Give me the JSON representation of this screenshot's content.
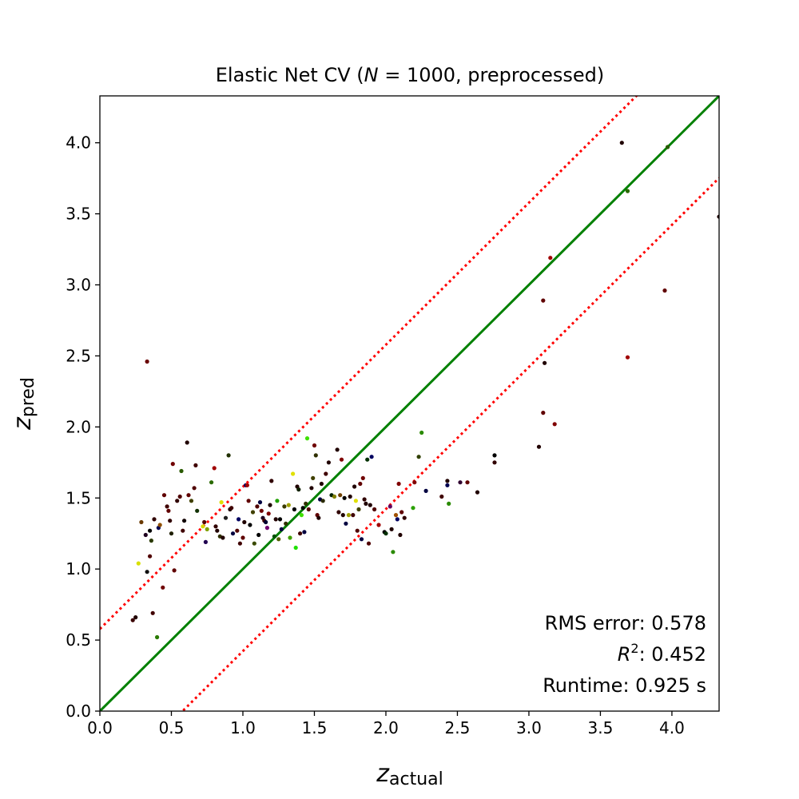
{
  "chart_data": {
    "type": "scatter",
    "title_pre": "Elastic Net CV (",
    "title_var": "N",
    "title_post": " = 1000, preprocessed)",
    "xlabel_main": "z",
    "xlabel_sub": "actual",
    "ylabel_main": "z",
    "ylabel_sub": "pred",
    "xlim": [
      0,
      4.33
    ],
    "ylim": [
      0,
      4.33
    ],
    "xticks": [
      "0.0",
      "0.5",
      "1.0",
      "1.5",
      "2.0",
      "2.5",
      "3.0",
      "3.5",
      "4.0"
    ],
    "yticks": [
      "0.0",
      "0.5",
      "1.0",
      "1.5",
      "2.0",
      "2.5",
      "3.0",
      "3.5",
      "4.0"
    ],
    "grid": false,
    "reference_lines": [
      {
        "type": "identity",
        "offset": 0,
        "color": "#008000",
        "style": "solid"
      },
      {
        "type": "identity",
        "offset": 0.578,
        "color": "#ff0000",
        "style": "dotted"
      },
      {
        "type": "identity",
        "offset": -0.578,
        "color": "#ff0000",
        "style": "dotted"
      }
    ],
    "annotations": {
      "rms_label": "RMS error: 0.578",
      "r2_var": "R",
      "r2_sup": "2",
      "r2_value": ": 0.452",
      "runtime_label": "Runtime: 0.925 s"
    },
    "points": [
      {
        "x": 0.23,
        "y": 0.64,
        "c": "#3a0000"
      },
      {
        "x": 0.25,
        "y": 0.66,
        "c": "#200000"
      },
      {
        "x": 0.27,
        "y": 1.04,
        "c": "#d8e000"
      },
      {
        "x": 0.29,
        "y": 1.33,
        "c": "#6a3a00"
      },
      {
        "x": 0.32,
        "y": 1.24,
        "c": "#200020"
      },
      {
        "x": 0.33,
        "y": 2.46,
        "c": "#6a0000"
      },
      {
        "x": 0.33,
        "y": 0.98,
        "c": "#101010"
      },
      {
        "x": 0.35,
        "y": 1.27,
        "c": "#000000"
      },
      {
        "x": 0.35,
        "y": 1.09,
        "c": "#500000"
      },
      {
        "x": 0.36,
        "y": 1.2,
        "c": "#2a3a00"
      },
      {
        "x": 0.37,
        "y": 0.69,
        "c": "#400000"
      },
      {
        "x": 0.38,
        "y": 1.35,
        "c": "#300000"
      },
      {
        "x": 0.4,
        "y": 0.52,
        "c": "#2a7a00"
      },
      {
        "x": 0.41,
        "y": 1.29,
        "c": "#000050"
      },
      {
        "x": 0.42,
        "y": 1.31,
        "c": "#905000"
      },
      {
        "x": 0.44,
        "y": 0.87,
        "c": "#700000"
      },
      {
        "x": 0.45,
        "y": 1.52,
        "c": "#600000"
      },
      {
        "x": 0.47,
        "y": 1.44,
        "c": "#400000"
      },
      {
        "x": 0.48,
        "y": 1.41,
        "c": "#600000"
      },
      {
        "x": 0.49,
        "y": 1.34,
        "c": "#300000"
      },
      {
        "x": 0.5,
        "y": 1.25,
        "c": "#202000"
      },
      {
        "x": 0.51,
        "y": 1.74,
        "c": "#700000"
      },
      {
        "x": 0.52,
        "y": 0.99,
        "c": "#600000"
      },
      {
        "x": 0.54,
        "y": 1.48,
        "c": "#300000"
      },
      {
        "x": 0.56,
        "y": 1.51,
        "c": "#500000"
      },
      {
        "x": 0.57,
        "y": 1.69,
        "c": "#2a5a00"
      },
      {
        "x": 0.58,
        "y": 1.27,
        "c": "#400000"
      },
      {
        "x": 0.59,
        "y": 1.34,
        "c": "#100000"
      },
      {
        "x": 0.61,
        "y": 1.89,
        "c": "#200000"
      },
      {
        "x": 0.62,
        "y": 1.52,
        "c": "#600000"
      },
      {
        "x": 0.64,
        "y": 1.48,
        "c": "#404000"
      },
      {
        "x": 0.66,
        "y": 1.57,
        "c": "#500000"
      },
      {
        "x": 0.67,
        "y": 1.73,
        "c": "#400000"
      },
      {
        "x": 0.68,
        "y": 1.41,
        "c": "#103000"
      },
      {
        "x": 0.72,
        "y": 1.3,
        "c": "#d8d800"
      },
      {
        "x": 0.73,
        "y": 1.33,
        "c": "#500000"
      },
      {
        "x": 0.74,
        "y": 1.19,
        "c": "#200050"
      },
      {
        "x": 0.75,
        "y": 1.28,
        "c": "#80a000"
      },
      {
        "x": 0.78,
        "y": 1.61,
        "c": "#2a6a00"
      },
      {
        "x": 0.8,
        "y": 1.71,
        "c": "#a00000"
      },
      {
        "x": 0.81,
        "y": 1.3,
        "c": "#300000"
      },
      {
        "x": 0.82,
        "y": 1.27,
        "c": "#200000"
      },
      {
        "x": 0.84,
        "y": 1.23,
        "c": "#303000"
      },
      {
        "x": 0.85,
        "y": 1.47,
        "c": "#e0e000"
      },
      {
        "x": 0.86,
        "y": 1.22,
        "c": "#200000"
      },
      {
        "x": 0.88,
        "y": 1.36,
        "c": "#202020"
      },
      {
        "x": 0.9,
        "y": 1.8,
        "c": "#203000"
      },
      {
        "x": 0.91,
        "y": 1.42,
        "c": "#200000"
      },
      {
        "x": 0.92,
        "y": 1.43,
        "c": "#400000"
      },
      {
        "x": 0.93,
        "y": 1.25,
        "c": "#000040"
      },
      {
        "x": 0.96,
        "y": 1.27,
        "c": "#500000"
      },
      {
        "x": 0.97,
        "y": 1.35,
        "c": "#000060"
      },
      {
        "x": 0.98,
        "y": 1.18,
        "c": "#400000"
      },
      {
        "x": 1.0,
        "y": 1.22,
        "c": "#600000"
      },
      {
        "x": 1.01,
        "y": 1.33,
        "c": "#200000"
      },
      {
        "x": 1.02,
        "y": 1.59,
        "c": "#000060"
      },
      {
        "x": 1.03,
        "y": 1.59,
        "c": "#a00000"
      },
      {
        "x": 1.04,
        "y": 1.48,
        "c": "#600000"
      },
      {
        "x": 1.05,
        "y": 1.31,
        "c": "#000000"
      },
      {
        "x": 1.07,
        "y": 1.4,
        "c": "#404000"
      },
      {
        "x": 1.08,
        "y": 1.18,
        "c": "#3a4a00"
      },
      {
        "x": 1.1,
        "y": 1.44,
        "c": "#500000"
      },
      {
        "x": 1.11,
        "y": 1.24,
        "c": "#000000"
      },
      {
        "x": 1.12,
        "y": 1.47,
        "c": "#000040"
      },
      {
        "x": 1.13,
        "y": 1.41,
        "c": "#700000"
      },
      {
        "x": 1.14,
        "y": 1.36,
        "c": "#200020"
      },
      {
        "x": 1.15,
        "y": 1.34,
        "c": "#400000"
      },
      {
        "x": 1.16,
        "y": 1.33,
        "c": "#000030"
      },
      {
        "x": 1.17,
        "y": 1.29,
        "c": "#700070"
      },
      {
        "x": 1.18,
        "y": 1.39,
        "c": "#800000"
      },
      {
        "x": 1.19,
        "y": 1.45,
        "c": "#200000"
      },
      {
        "x": 1.2,
        "y": 1.62,
        "c": "#300000"
      },
      {
        "x": 1.22,
        "y": 1.23,
        "c": "#005000"
      },
      {
        "x": 1.23,
        "y": 1.35,
        "c": "#200000"
      },
      {
        "x": 1.24,
        "y": 1.48,
        "c": "#20a000"
      },
      {
        "x": 1.25,
        "y": 1.21,
        "c": "#506000"
      },
      {
        "x": 1.26,
        "y": 1.35,
        "c": "#000000"
      },
      {
        "x": 1.27,
        "y": 1.28,
        "c": "#000040"
      },
      {
        "x": 1.29,
        "y": 1.44,
        "c": "#3a3a00"
      },
      {
        "x": 1.3,
        "y": 1.32,
        "c": "#303000"
      },
      {
        "x": 1.32,
        "y": 1.45,
        "c": "#a0a000"
      },
      {
        "x": 1.33,
        "y": 1.22,
        "c": "#40a000"
      },
      {
        "x": 1.35,
        "y": 1.67,
        "c": "#e0e000"
      },
      {
        "x": 1.36,
        "y": 1.42,
        "c": "#000000"
      },
      {
        "x": 1.37,
        "y": 1.15,
        "c": "#20e000"
      },
      {
        "x": 1.38,
        "y": 1.58,
        "c": "#200000"
      },
      {
        "x": 1.39,
        "y": 1.56,
        "c": "#102000"
      },
      {
        "x": 1.4,
        "y": 1.25,
        "c": "#400000"
      },
      {
        "x": 1.41,
        "y": 1.38,
        "c": "#40e000"
      },
      {
        "x": 1.42,
        "y": 1.43,
        "c": "#000000"
      },
      {
        "x": 1.43,
        "y": 1.26,
        "c": "#000040"
      },
      {
        "x": 1.44,
        "y": 1.46,
        "c": "#303000"
      },
      {
        "x": 1.45,
        "y": 1.92,
        "c": "#40e000"
      },
      {
        "x": 1.46,
        "y": 1.42,
        "c": "#500000"
      },
      {
        "x": 1.48,
        "y": 1.57,
        "c": "#200000"
      },
      {
        "x": 1.49,
        "y": 1.64,
        "c": "#404000"
      },
      {
        "x": 1.5,
        "y": 1.87,
        "c": "#700000"
      },
      {
        "x": 1.51,
        "y": 1.8,
        "c": "#303000"
      },
      {
        "x": 1.52,
        "y": 1.38,
        "c": "#600000"
      },
      {
        "x": 1.53,
        "y": 1.36,
        "c": "#200000"
      },
      {
        "x": 1.54,
        "y": 1.49,
        "c": "#000040"
      },
      {
        "x": 1.55,
        "y": 1.6,
        "c": "#200000"
      },
      {
        "x": 1.56,
        "y": 1.48,
        "c": "#2a2a00"
      },
      {
        "x": 1.58,
        "y": 1.67,
        "c": "#400000"
      },
      {
        "x": 1.6,
        "y": 1.75,
        "c": "#200000"
      },
      {
        "x": 1.62,
        "y": 1.52,
        "c": "#002000"
      },
      {
        "x": 1.64,
        "y": 1.51,
        "c": "#808000"
      },
      {
        "x": 1.66,
        "y": 1.84,
        "c": "#200000"
      },
      {
        "x": 1.67,
        "y": 1.4,
        "c": "#300000"
      },
      {
        "x": 1.68,
        "y": 1.52,
        "c": "#704000"
      },
      {
        "x": 1.69,
        "y": 1.77,
        "c": "#800000"
      },
      {
        "x": 1.7,
        "y": 1.38,
        "c": "#200000"
      },
      {
        "x": 1.71,
        "y": 1.5,
        "c": "#000000"
      },
      {
        "x": 1.72,
        "y": 1.32,
        "c": "#000040"
      },
      {
        "x": 1.74,
        "y": 1.38,
        "c": "#a0a000"
      },
      {
        "x": 1.75,
        "y": 1.51,
        "c": "#200000"
      },
      {
        "x": 1.77,
        "y": 1.38,
        "c": "#400000"
      },
      {
        "x": 1.78,
        "y": 1.58,
        "c": "#200000"
      },
      {
        "x": 1.79,
        "y": 1.48,
        "c": "#e0e000"
      },
      {
        "x": 1.8,
        "y": 1.27,
        "c": "#500000"
      },
      {
        "x": 1.81,
        "y": 1.42,
        "c": "#404000"
      },
      {
        "x": 1.82,
        "y": 1.6,
        "c": "#600000"
      },
      {
        "x": 1.83,
        "y": 1.21,
        "c": "#000040"
      },
      {
        "x": 1.84,
        "y": 1.64,
        "c": "#700000"
      },
      {
        "x": 1.85,
        "y": 1.49,
        "c": "#300000"
      },
      {
        "x": 1.86,
        "y": 1.46,
        "c": "#200000"
      },
      {
        "x": 1.87,
        "y": 1.77,
        "c": "#003000"
      },
      {
        "x": 1.88,
        "y": 1.18,
        "c": "#500000"
      },
      {
        "x": 1.89,
        "y": 1.45,
        "c": "#200000"
      },
      {
        "x": 1.9,
        "y": 1.79,
        "c": "#000060"
      },
      {
        "x": 1.92,
        "y": 1.42,
        "c": "#500000"
      },
      {
        "x": 1.95,
        "y": 1.31,
        "c": "#a00000"
      },
      {
        "x": 1.99,
        "y": 1.26,
        "c": "#000000"
      },
      {
        "x": 2.0,
        "y": 1.25,
        "c": "#003000"
      },
      {
        "x": 2.03,
        "y": 1.44,
        "c": "#600060"
      },
      {
        "x": 2.04,
        "y": 1.28,
        "c": "#200000"
      },
      {
        "x": 2.05,
        "y": 1.12,
        "c": "#2a8a00"
      },
      {
        "x": 2.07,
        "y": 1.38,
        "c": "#a05000"
      },
      {
        "x": 2.08,
        "y": 1.35,
        "c": "#000060"
      },
      {
        "x": 2.09,
        "y": 1.6,
        "c": "#800000"
      },
      {
        "x": 2.1,
        "y": 1.24,
        "c": "#200000"
      },
      {
        "x": 2.11,
        "y": 1.4,
        "c": "#600000"
      },
      {
        "x": 2.13,
        "y": 1.36,
        "c": "#300000"
      },
      {
        "x": 2.19,
        "y": 1.43,
        "c": "#2aa000"
      },
      {
        "x": 2.2,
        "y": 1.61,
        "c": "#800000"
      },
      {
        "x": 2.23,
        "y": 1.79,
        "c": "#304000"
      },
      {
        "x": 2.25,
        "y": 1.96,
        "c": "#2a8a00"
      },
      {
        "x": 2.28,
        "y": 1.55,
        "c": "#000040"
      },
      {
        "x": 2.39,
        "y": 1.51,
        "c": "#400000"
      },
      {
        "x": 2.43,
        "y": 1.62,
        "c": "#200000"
      },
      {
        "x": 2.43,
        "y": 1.59,
        "c": "#000050"
      },
      {
        "x": 2.44,
        "y": 1.46,
        "c": "#2a8a00"
      },
      {
        "x": 2.52,
        "y": 1.61,
        "c": "#300030"
      },
      {
        "x": 2.57,
        "y": 1.61,
        "c": "#600000"
      },
      {
        "x": 2.64,
        "y": 1.54,
        "c": "#200000"
      },
      {
        "x": 2.76,
        "y": 1.75,
        "c": "#300000"
      },
      {
        "x": 2.76,
        "y": 1.8,
        "c": "#000000"
      },
      {
        "x": 3.07,
        "y": 1.86,
        "c": "#200000"
      },
      {
        "x": 3.1,
        "y": 2.1,
        "c": "#600000"
      },
      {
        "x": 3.1,
        "y": 2.89,
        "c": "#600000"
      },
      {
        "x": 3.11,
        "y": 2.45,
        "c": "#200000"
      },
      {
        "x": 3.15,
        "y": 3.19,
        "c": "#a00000"
      },
      {
        "x": 3.18,
        "y": 2.02,
        "c": "#800000"
      },
      {
        "x": 3.65,
        "y": 4.0,
        "c": "#200000"
      },
      {
        "x": 3.69,
        "y": 3.66,
        "c": "#2a6a00"
      },
      {
        "x": 3.69,
        "y": 2.49,
        "c": "#a00000"
      },
      {
        "x": 3.95,
        "y": 2.96,
        "c": "#600000"
      },
      {
        "x": 3.97,
        "y": 3.97,
        "c": "#2a5a00"
      },
      {
        "x": 4.33,
        "y": 3.48,
        "c": "#200000"
      }
    ]
  }
}
